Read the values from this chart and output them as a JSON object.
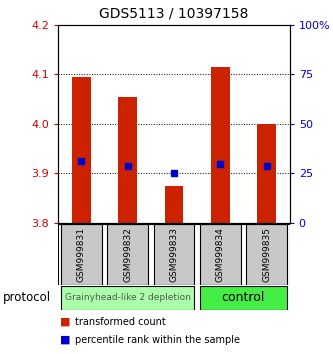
{
  "title": "GDS5113 / 10397158",
  "samples": [
    "GSM999831",
    "GSM999832",
    "GSM999833",
    "GSM999834",
    "GSM999835"
  ],
  "bar_bottoms": [
    3.8,
    3.8,
    3.8,
    3.8,
    3.8
  ],
  "bar_tops": [
    4.095,
    4.055,
    3.875,
    4.115,
    4.0
  ],
  "percentile_values": [
    3.925,
    3.915,
    3.9,
    3.92,
    3.915
  ],
  "ylim": [
    3.8,
    4.2
  ],
  "yticks_left": [
    3.8,
    3.9,
    4.0,
    4.1,
    4.2
  ],
  "yticks_right": [
    0,
    25,
    50,
    75,
    100
  ],
  "ytick_labels_right": [
    "0",
    "25",
    "50",
    "75",
    "100%"
  ],
  "left_color": "#cc0000",
  "right_color": "#0000cc",
  "bar_color": "#cc2200",
  "percentile_color": "#0000cc",
  "groups": [
    {
      "label": "Grainyhead-like 2 depletion",
      "n_samples": 3,
      "color": "#aaffaa",
      "text_size": 6.5
    },
    {
      "label": "control",
      "n_samples": 2,
      "color": "#44ee44",
      "text_size": 9
    }
  ],
  "protocol_label": "protocol",
  "legend_bar_label": "transformed count",
  "legend_pct_label": "percentile rank within the sample",
  "bar_width": 0.4,
  "fig_width": 3.33,
  "fig_height": 3.54
}
